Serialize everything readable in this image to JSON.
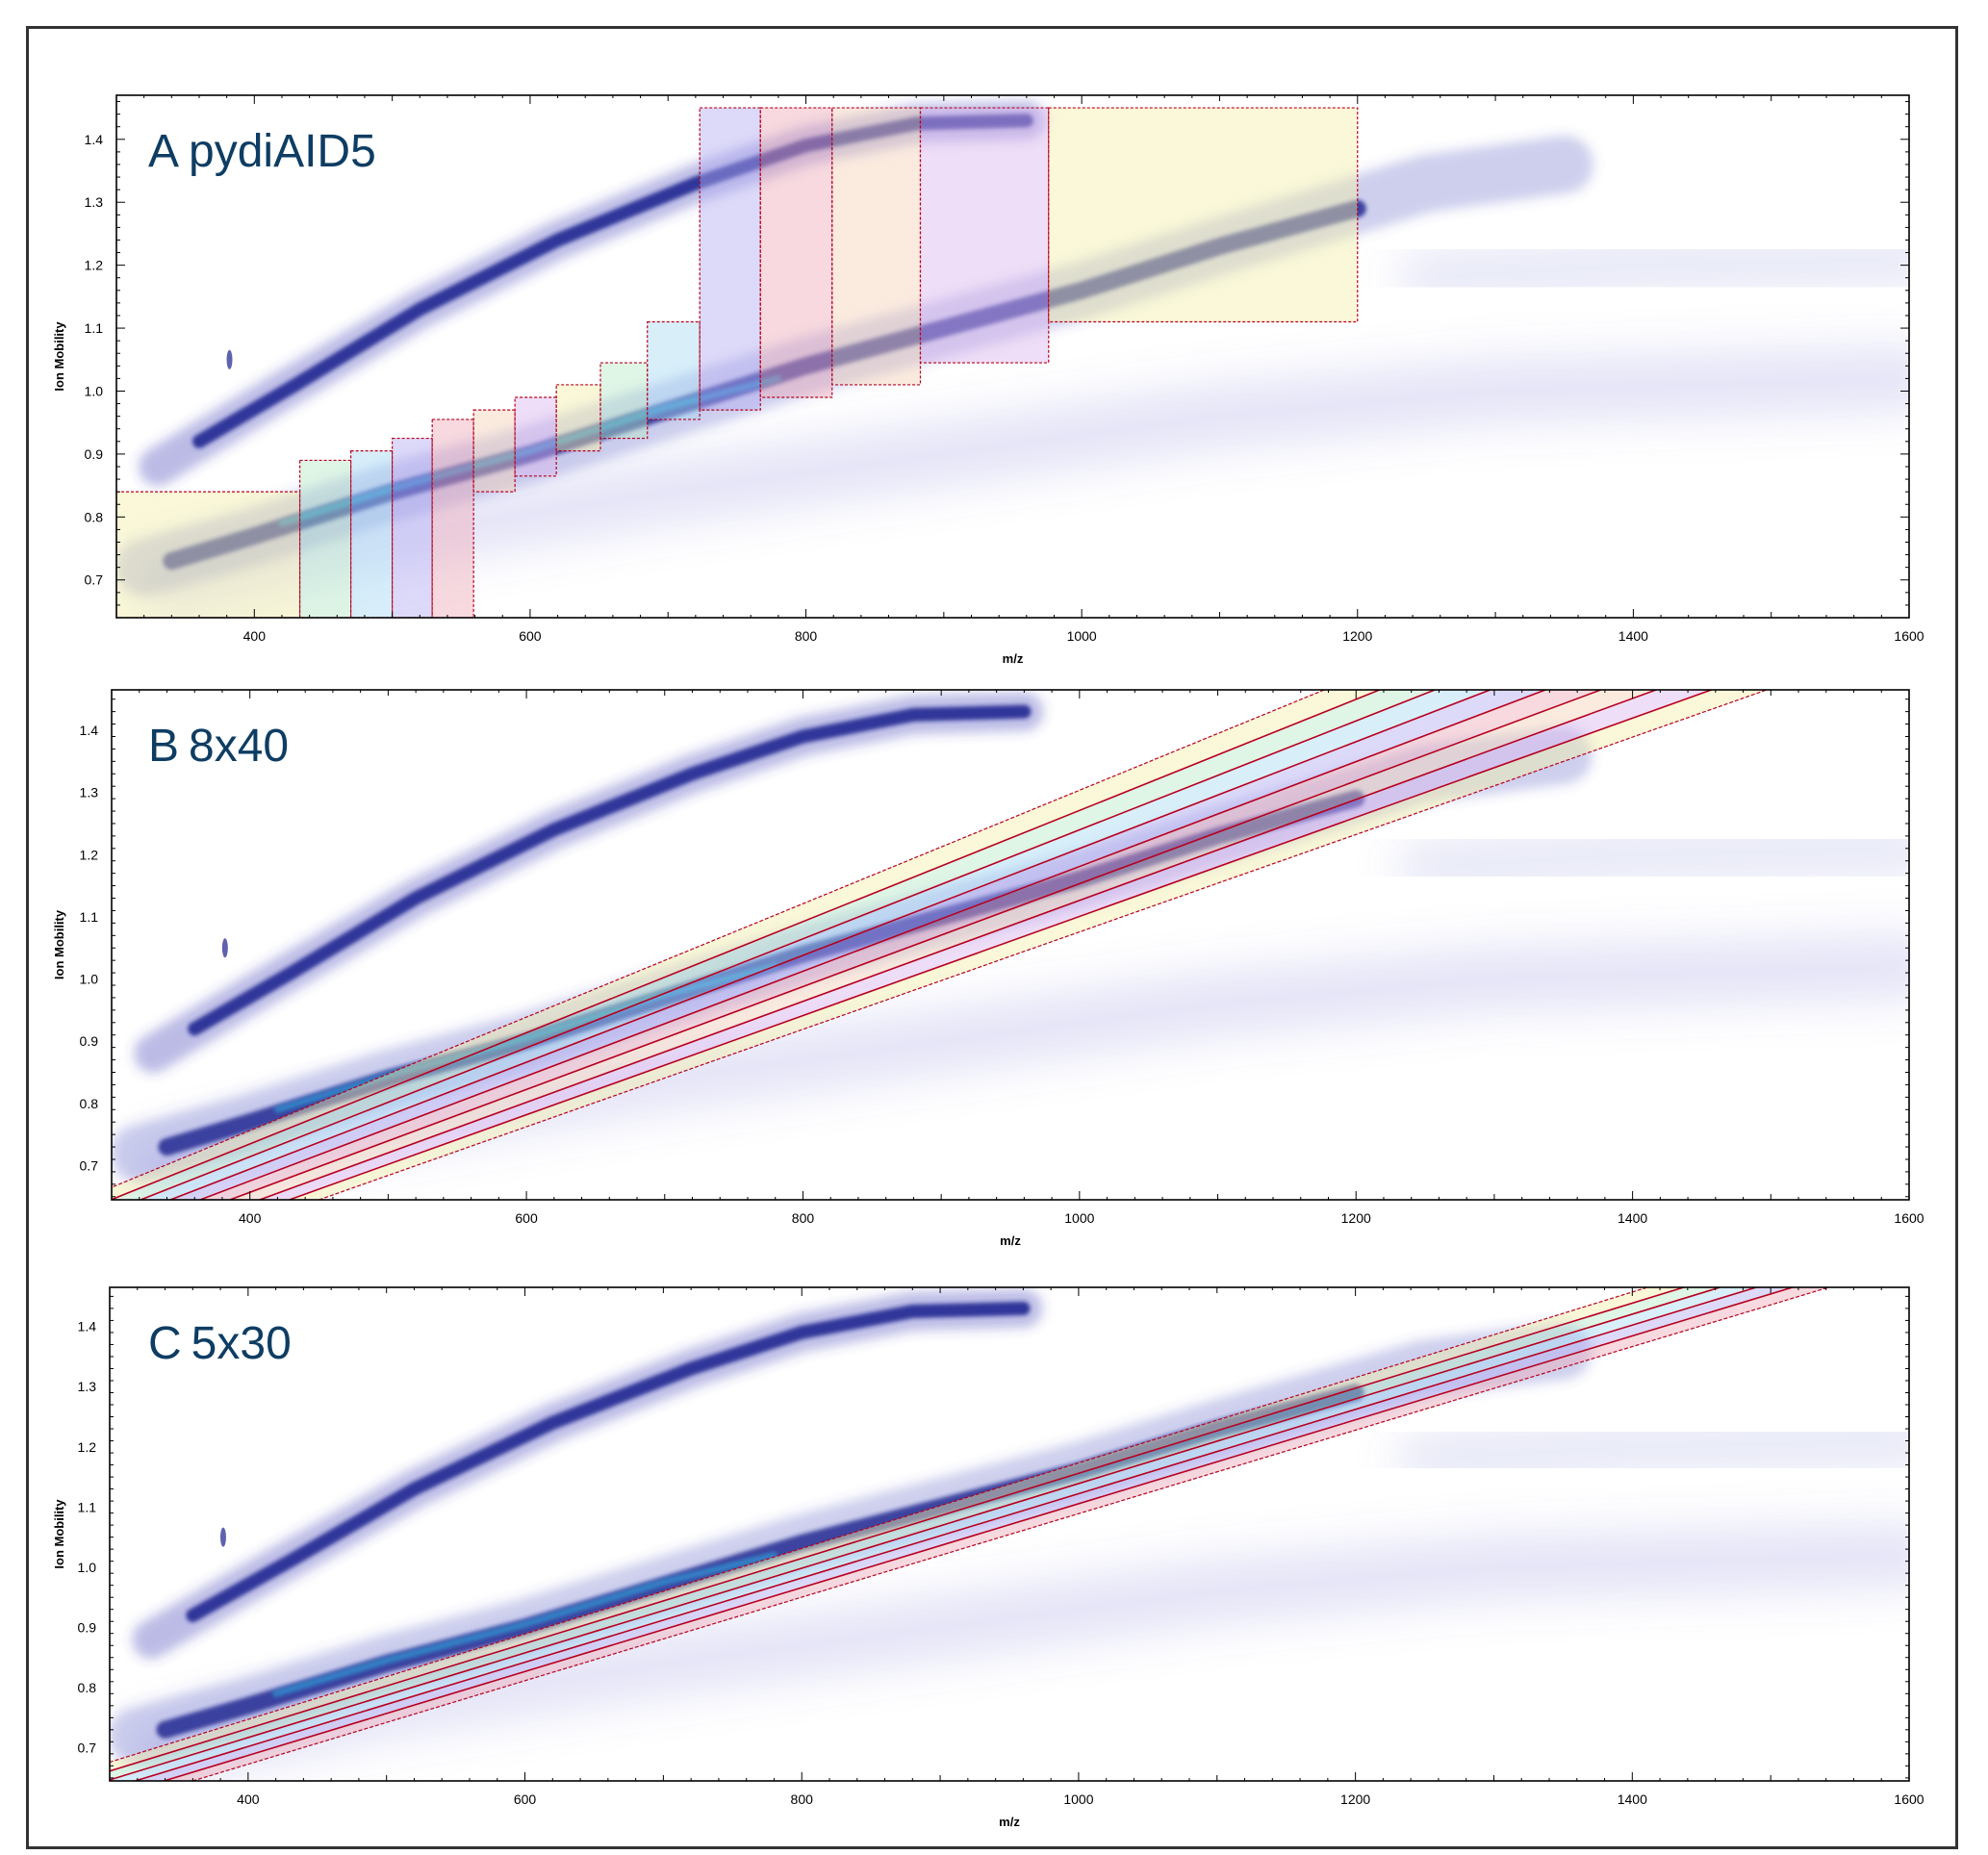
{
  "chart_data": [
    {
      "panel_letter": "A",
      "panel_name": "pydiAID5",
      "type": "heatmap",
      "xlabel": "m/z",
      "ylabel": "Ion Mobility",
      "xlim": [
        300,
        1600
      ],
      "ylim": [
        0.64,
        1.47
      ],
      "x_ticks": [
        400,
        600,
        800,
        1000,
        1200,
        1400,
        1600
      ],
      "y_ticks": [
        0.7,
        0.8,
        0.9,
        1.0,
        1.1,
        1.2,
        1.3,
        1.4
      ],
      "windows": [
        {
          "mz": [
            300,
            433
          ],
          "im": [
            0.64,
            0.84
          ]
        },
        {
          "mz": [
            433,
            470
          ],
          "im": [
            0.64,
            0.89
          ]
        },
        {
          "mz": [
            470,
            500
          ],
          "im": [
            0.64,
            0.905
          ]
        },
        {
          "mz": [
            500,
            529
          ],
          "im": [
            0.64,
            0.925
          ]
        },
        {
          "mz": [
            529,
            559
          ],
          "im": [
            0.64,
            0.955
          ]
        },
        {
          "mz": [
            559,
            589
          ],
          "im": [
            0.84,
            0.97
          ]
        },
        {
          "mz": [
            589,
            619
          ],
          "im": [
            0.865,
            0.99
          ]
        },
        {
          "mz": [
            619,
            651
          ],
          "im": [
            0.905,
            1.01
          ]
        },
        {
          "mz": [
            651,
            685
          ],
          "im": [
            0.925,
            1.045
          ]
        },
        {
          "mz": [
            685,
            723
          ],
          "im": [
            0.955,
            1.11
          ]
        },
        {
          "mz": [
            723,
            767
          ],
          "im": [
            0.97,
            1.45
          ]
        },
        {
          "mz": [
            767,
            819
          ],
          "im": [
            0.99,
            1.45
          ]
        },
        {
          "mz": [
            819,
            883
          ],
          "im": [
            1.01,
            1.45
          ]
        },
        {
          "mz": [
            883,
            976
          ],
          "im": [
            1.045,
            1.45
          ]
        },
        {
          "mz": [
            976,
            1200
          ],
          "im": [
            1.11,
            1.45
          ]
        }
      ]
    },
    {
      "panel_letter": "B",
      "panel_name": "8x40",
      "type": "heatmap",
      "xlabel": "m/z",
      "ylabel": "Ion Mobility",
      "xlim": [
        300,
        1600
      ],
      "ylim": [
        0.645,
        1.465
      ],
      "x_ticks": [
        400,
        600,
        800,
        1000,
        1200,
        1400,
        1600
      ],
      "y_ticks": [
        0.7,
        0.8,
        0.9,
        1.0,
        1.1,
        1.2,
        1.3,
        1.4
      ],
      "diagonal_windows": {
        "count": 8,
        "mz_at_im_0_645": [
          278,
          450
        ],
        "mz_at_im_1_465": [
          1177,
          1497
        ]
      }
    },
    {
      "panel_letter": "C",
      "panel_name": "5x30",
      "type": "heatmap",
      "xlabel": "m/z",
      "ylabel": "Ion Mobility",
      "xlim": [
        300,
        1600
      ],
      "ylim": [
        0.645,
        1.465
      ],
      "x_ticks": [
        400,
        600,
        800,
        1000,
        1200,
        1400,
        1600
      ],
      "y_ticks": [
        0.7,
        0.8,
        0.9,
        1.0,
        1.1,
        1.2,
        1.3,
        1.4
      ],
      "diagonal_windows": {
        "count": 5,
        "mz_at_im_0_645": [
          256,
          360
        ],
        "mz_at_im_1_465": [
          1411,
          1542
        ]
      }
    }
  ],
  "colors": {
    "frame": "#333333",
    "axis": "#000000",
    "title": "#0e3d63",
    "window_edge": "#b8001f",
    "density_dark": "#1a1f8c",
    "density_mid": "#4a4fc0",
    "density_core": "#29b6e8",
    "window_fills": [
      "#f3efa8",
      "#b8ecc8",
      "#a9dcf5",
      "#b3aef2",
      "#eeaab8",
      "#f6d2b8",
      "#dcb6ee"
    ]
  }
}
